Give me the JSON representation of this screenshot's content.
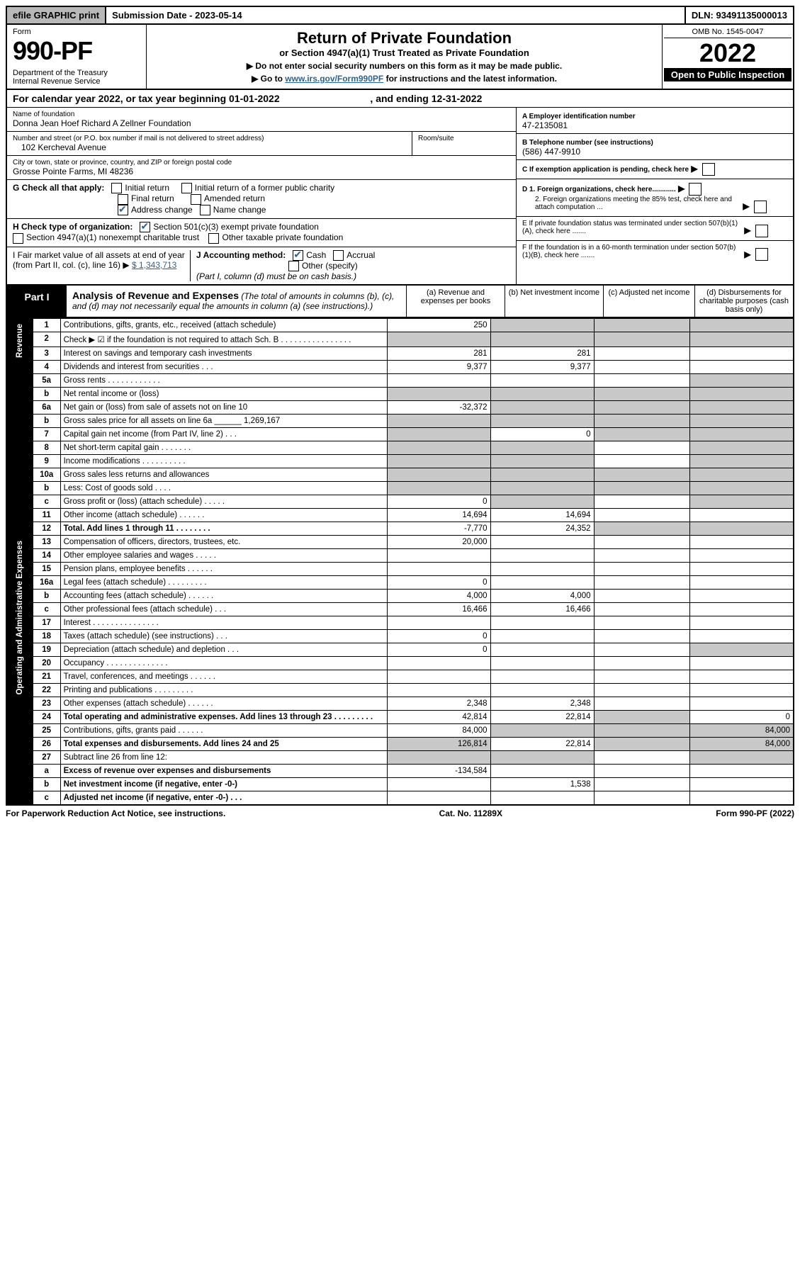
{
  "topbar": {
    "left": "efile GRAPHIC print",
    "mid": "Submission Date - 2023-05-14",
    "right": "DLN: 93491135000013"
  },
  "header": {
    "form": "Form",
    "num": "990-PF",
    "dept": "Department of the Treasury\nInternal Revenue Service",
    "title": "Return of Private Foundation",
    "sub": "or Section 4947(a)(1) Trust Treated as Private Foundation",
    "note1": "▶ Do not enter social security numbers on this form as it may be made public.",
    "note2": "▶ Go to ",
    "link": "www.irs.gov/Form990PF",
    "note2b": " for instructions and the latest information.",
    "omb": "OMB No. 1545-0047",
    "year": "2022",
    "open": "Open to Public Inspection"
  },
  "cal": {
    "a": "For calendar year 2022, or tax year beginning 01-01-2022",
    "b": ", and ending 12-31-2022"
  },
  "info": {
    "name_lbl": "Name of foundation",
    "name": "Donna Jean Hoef Richard A Zellner Foundation",
    "addr_lbl": "Number and street (or P.O. box number if mail is not delivered to street address)",
    "addr": "102 Kercheval Avenue",
    "room_lbl": "Room/suite",
    "city_lbl": "City or town, state or province, country, and ZIP or foreign postal code",
    "city": "Grosse Pointe Farms, MI  48236",
    "A_lbl": "A Employer identification number",
    "A": "47-2135081",
    "B_lbl": "B Telephone number (see instructions)",
    "B": "(586) 447-9910",
    "C": "C If exemption application is pending, check here",
    "D1": "D 1. Foreign organizations, check here............",
    "D2": "2. Foreign organizations meeting the 85% test, check here and attach computation ...",
    "E": "E  If private foundation status was terminated under section 507(b)(1)(A), check here .......",
    "F": "F  If the foundation is in a 60-month termination under section 507(b)(1)(B), check here ......."
  },
  "G": {
    "lbl": "G Check all that apply:",
    "o1": "Initial return",
    "o2": "Initial return of a former public charity",
    "o3": "Final return",
    "o4": "Amended return",
    "o5": "Address change",
    "o6": "Name change"
  },
  "H": {
    "lbl": "H Check type of organization:",
    "o1": "Section 501(c)(3) exempt private foundation",
    "o2": "Section 4947(a)(1) nonexempt charitable trust",
    "o3": "Other taxable private foundation"
  },
  "I": {
    "lbl": "I Fair market value of all assets at end of year (from Part II, col. (c), line 16) ▶",
    "val": "$  1,343,713"
  },
  "J": {
    "lbl": "J Accounting method:",
    "o1": "Cash",
    "o2": "Accrual",
    "o3": "Other (specify)",
    "note": "(Part I, column (d) must be on cash basis.)"
  },
  "part1": {
    "tab": "Part I",
    "title": "Analysis of Revenue and Expenses",
    "note": " (The total of amounts in columns (b), (c), and (d) may not necessarily equal the amounts in column (a) (see instructions).)",
    "cols": {
      "a": "(a) Revenue and expenses per books",
      "b": "(b) Net investment income",
      "c": "(c) Adjusted net income",
      "d": "(d) Disbursements for charitable purposes (cash basis only)"
    }
  },
  "side": {
    "rev": "Revenue",
    "exp": "Operating and Administrative Expenses"
  },
  "rows": [
    {
      "ln": "1",
      "lbl": "Contributions, gifts, grants, etc., received (attach schedule)",
      "a": "250"
    },
    {
      "ln": "2",
      "lbl": "Check ▶ ☑ if the foundation is not required to attach Sch. B  . . . . . . . . . . . . . . . ."
    },
    {
      "ln": "3",
      "lbl": "Interest on savings and temporary cash investments",
      "a": "281",
      "b": "281"
    },
    {
      "ln": "4",
      "lbl": "Dividends and interest from securities  . . .",
      "a": "9,377",
      "b": "9,377"
    },
    {
      "ln": "5a",
      "lbl": "Gross rents  . . . . . . . . . . . ."
    },
    {
      "ln": "b",
      "lbl": "Net rental income or (loss)"
    },
    {
      "ln": "6a",
      "lbl": "Net gain or (loss) from sale of assets not on line 10",
      "a": "-32,372"
    },
    {
      "ln": "b",
      "lbl": "Gross sales price for all assets on line 6a ______ 1,269,167"
    },
    {
      "ln": "7",
      "lbl": "Capital gain net income (from Part IV, line 2)  . . .",
      "b": "0"
    },
    {
      "ln": "8",
      "lbl": "Net short-term capital gain  . . . . . . ."
    },
    {
      "ln": "9",
      "lbl": "Income modifications . . . . . . . . . ."
    },
    {
      "ln": "10a",
      "lbl": "Gross sales less returns and allowances"
    },
    {
      "ln": "b",
      "lbl": "Less: Cost of goods sold  . . . ."
    },
    {
      "ln": "c",
      "lbl": "Gross profit or (loss) (attach schedule)  . . . . .",
      "a": "0"
    },
    {
      "ln": "11",
      "lbl": "Other income (attach schedule)  . . . . . .",
      "a": "14,694",
      "b": "14,694"
    },
    {
      "ln": "12",
      "lbl": "Total. Add lines 1 through 11  . . . . . . . .",
      "a": "-7,770",
      "b": "24,352",
      "bold": true
    },
    {
      "ln": "13",
      "lbl": "Compensation of officers, directors, trustees, etc.",
      "a": "20,000"
    },
    {
      "ln": "14",
      "lbl": "Other employee salaries and wages  . . . . ."
    },
    {
      "ln": "15",
      "lbl": "Pension plans, employee benefits . . . . . ."
    },
    {
      "ln": "16a",
      "lbl": "Legal fees (attach schedule) . . . . . . . . .",
      "a": "0"
    },
    {
      "ln": "b",
      "lbl": "Accounting fees (attach schedule) . . . . . .",
      "a": "4,000",
      "b": "4,000"
    },
    {
      "ln": "c",
      "lbl": "Other professional fees (attach schedule)  . . .",
      "a": "16,466",
      "b": "16,466"
    },
    {
      "ln": "17",
      "lbl": "Interest . . . . . . . . . . . . . . ."
    },
    {
      "ln": "18",
      "lbl": "Taxes (attach schedule) (see instructions)  . . .",
      "a": "0"
    },
    {
      "ln": "19",
      "lbl": "Depreciation (attach schedule) and depletion  . . .",
      "a": "0"
    },
    {
      "ln": "20",
      "lbl": "Occupancy . . . . . . . . . . . . . ."
    },
    {
      "ln": "21",
      "lbl": "Travel, conferences, and meetings . . . . . ."
    },
    {
      "ln": "22",
      "lbl": "Printing and publications . . . . . . . . ."
    },
    {
      "ln": "23",
      "lbl": "Other expenses (attach schedule) . . . . . .",
      "a": "2,348",
      "b": "2,348"
    },
    {
      "ln": "24",
      "lbl": "Total operating and administrative expenses. Add lines 13 through 23  . . . . . . . . .",
      "a": "42,814",
      "b": "22,814",
      "d": "0",
      "bold": true
    },
    {
      "ln": "25",
      "lbl": "Contributions, gifts, grants paid  . . . . . .",
      "a": "84,000",
      "d": "84,000"
    },
    {
      "ln": "26",
      "lbl": "Total expenses and disbursements. Add lines 24 and 25",
      "a": "126,814",
      "b": "22,814",
      "d": "84,000",
      "bold": true
    },
    {
      "ln": "27",
      "lbl": "Subtract line 26 from line 12:"
    },
    {
      "ln": "a",
      "lbl": "Excess of revenue over expenses and disbursements",
      "a": "-134,584",
      "bold": true
    },
    {
      "ln": "b",
      "lbl": "Net investment income (if negative, enter -0-)",
      "b": "1,538",
      "bold": true
    },
    {
      "ln": "c",
      "lbl": "Adjusted net income (if negative, enter -0-)  . . .",
      "bold": true
    }
  ],
  "grey_map": {
    "1": [
      "b",
      "c",
      "d"
    ],
    "2": [
      "a",
      "b",
      "c",
      "d"
    ],
    "5a": [
      "d"
    ],
    "b_rental": [
      "a",
      "b",
      "c",
      "d"
    ],
    "6a": [
      "b",
      "c",
      "d"
    ],
    "b_6": [
      "a",
      "b",
      "c",
      "d"
    ],
    "7": [
      "a",
      "c",
      "d"
    ],
    "8": [
      "a",
      "b",
      "d"
    ],
    "9": [
      "a",
      "b",
      "d"
    ],
    "10a": [
      "a",
      "b",
      "c",
      "d"
    ],
    "b_10": [
      "a",
      "b",
      "c",
      "d"
    ],
    "c_10": [
      "b",
      "d"
    ],
    "12": [
      "c",
      "d"
    ],
    "19": [
      "d"
    ],
    "24": [
      "c"
    ],
    "25": [
      "b",
      "c"
    ],
    "26": [
      "c"
    ],
    "27": [
      "a",
      "b",
      "c",
      "d"
    ],
    "a_27": [
      "b",
      "c",
      "d"
    ],
    "b_27": [
      "a",
      "c",
      "d"
    ],
    "c_27": [
      "a",
      "b",
      "d"
    ]
  },
  "footer": {
    "l": "For Paperwork Reduction Act Notice, see instructions.",
    "m": "Cat. No. 11289X",
    "r": "Form 990-PF (2022)"
  }
}
